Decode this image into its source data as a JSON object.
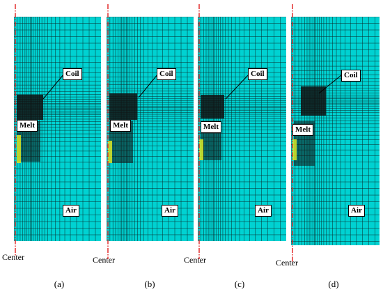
{
  "panels": [
    {
      "caption": "(a)",
      "coil": "Coil",
      "melt": "Melt",
      "air": "Air",
      "center": "Center"
    },
    {
      "caption": "(b)",
      "coil": "Coil",
      "melt": "Melt",
      "air": "Air",
      "center": "Center"
    },
    {
      "caption": "(c)",
      "coil": "Coil",
      "melt": "Melt",
      "air": "Air",
      "center": "Center"
    },
    {
      "caption": "(d)",
      "coil": "Coil",
      "melt": "Melt",
      "air": "Air",
      "center": "Center"
    }
  ],
  "colors": {
    "mesh_fill": "#00d2d2",
    "mesh_line": "#0b2a2a",
    "dense_region": "#111111",
    "center_line": "#e02020",
    "hot_spot": "#e8f020"
  }
}
